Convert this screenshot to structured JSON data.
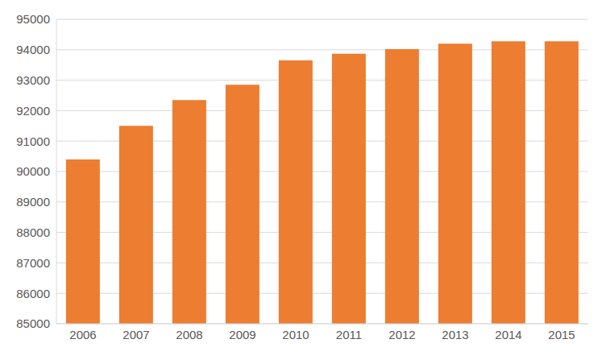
{
  "chart_data": {
    "type": "bar",
    "categories": [
      "2006",
      "2007",
      "2008",
      "2009",
      "2010",
      "2011",
      "2012",
      "2013",
      "2014",
      "2015"
    ],
    "values": [
      90400,
      91500,
      92350,
      92850,
      93650,
      93870,
      94020,
      94200,
      94280,
      94280
    ],
    "color": "#ed7d31",
    "ylim": [
      85000,
      95000
    ],
    "yticks": [
      85000,
      86000,
      87000,
      88000,
      89000,
      90000,
      91000,
      92000,
      93000,
      94000,
      95000
    ],
    "grid": true
  }
}
